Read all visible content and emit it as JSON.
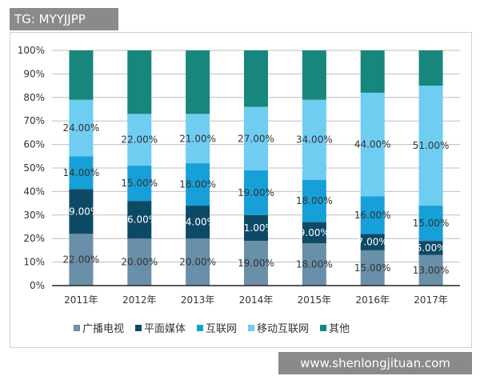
{
  "watermark_top": "TG: MYYJJPP",
  "watermark_bottom": "www.shenlongjituan.com",
  "chart_data": {
    "type": "bar",
    "stacked": true,
    "categories": [
      "2011年",
      "2012年",
      "2013年",
      "2014年",
      "2015年",
      "2016年",
      "2017年"
    ],
    "ylim": [
      0,
      100
    ],
    "yticks": [
      "0%",
      "10%",
      "20%",
      "30%",
      "40%",
      "50%",
      "60%",
      "70%",
      "80%",
      "90%",
      "100%"
    ],
    "grid": true,
    "legend_position": "bottom",
    "series": [
      {
        "name": "广播电视",
        "color": "#6a8fa8",
        "values": [
          22,
          20,
          20,
          19,
          18,
          15,
          13
        ],
        "labeled": true
      },
      {
        "name": "平面媒体",
        "color": "#0d4a66",
        "values": [
          19,
          16,
          14,
          11,
          9,
          7,
          6
        ],
        "labeled": true
      },
      {
        "name": "互联网",
        "color": "#17a0d8",
        "values": [
          14,
          15,
          18,
          19,
          18,
          16,
          15
        ],
        "labeled": true
      },
      {
        "name": "移动互联网",
        "color": "#6fcdf2",
        "values": [
          24,
          22,
          21,
          27,
          34,
          44,
          51
        ],
        "labeled": true
      },
      {
        "name": "其他",
        "color": "#17877d",
        "values": [
          21,
          27,
          27,
          24,
          21,
          18,
          15
        ],
        "labeled": false
      }
    ]
  }
}
